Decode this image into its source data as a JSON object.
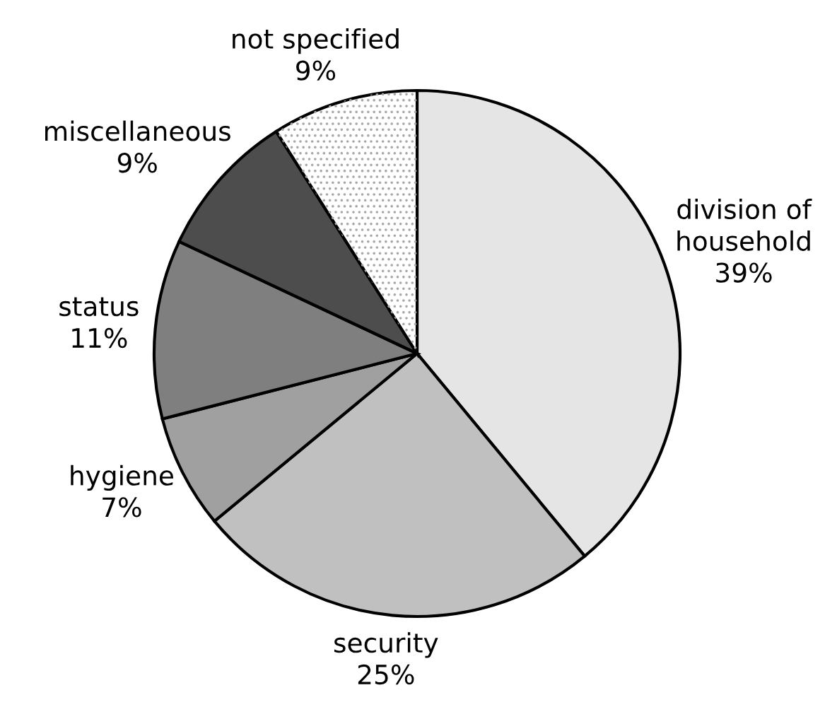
{
  "chart_data": {
    "type": "pie",
    "categories": [
      "division of\nhousehold",
      "security",
      "hygiene",
      "status",
      "miscellaneous",
      "not specified"
    ],
    "values": [
      39,
      25,
      7,
      11,
      9,
      9
    ],
    "value_labels": [
      "39%",
      "25%",
      "7%",
      "11%",
      "9%",
      "9%"
    ],
    "colors": [
      "#e5e5e5",
      "#c0c0c0",
      "#a0a0a0",
      "#7f7f7f",
      "#4d4d4d",
      "#ffffff"
    ],
    "legend": false
  }
}
